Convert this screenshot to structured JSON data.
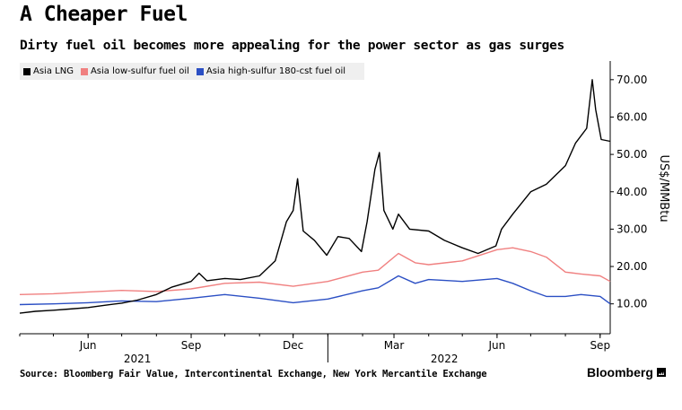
{
  "header": {
    "title": "A Cheaper Fuel",
    "subtitle": "Dirty fuel oil becomes more appealing for the power sector as gas surges"
  },
  "footer": {
    "source": "Source: Bloomberg Fair Value, Intercontinental Exchange, New York Mercantile Exchange",
    "brand": "Bloomberg"
  },
  "chart_data": {
    "type": "line",
    "title": "A Cheaper Fuel",
    "subtitle": "Dirty fuel oil becomes more appealing for the power sector as gas surges",
    "ylabel": "US$/MMBtu",
    "ylim": [
      2,
      75
    ],
    "y_ticks": [
      "10.00",
      "20.00",
      "30.00",
      "40.00",
      "50.00",
      "60.00",
      "70.00"
    ],
    "x_range": [
      "2021-04-01",
      "2022-09-10"
    ],
    "x_ticks": [
      {
        "label": "Jun",
        "date": "2021-06-01"
      },
      {
        "label": "Sep",
        "date": "2021-09-01"
      },
      {
        "label": "Dec",
        "date": "2021-12-01"
      },
      {
        "label": "Mar",
        "date": "2022-03-01"
      },
      {
        "label": "Jun",
        "date": "2022-06-01"
      },
      {
        "label": "Sep",
        "date": "2022-09-01"
      }
    ],
    "year_labels": [
      {
        "label": "2021",
        "date": "2021-07-15"
      },
      {
        "label": "2022",
        "date": "2022-04-15"
      }
    ],
    "year_dividers": [
      "2022-01-01"
    ],
    "legend_position": "top-left",
    "grid": false,
    "series": [
      {
        "name": "Asia LNG",
        "color": "#000000",
        "points": [
          [
            "2021-04-01",
            7.5
          ],
          [
            "2021-04-15",
            8.0
          ],
          [
            "2021-05-01",
            8.3
          ],
          [
            "2021-05-15",
            8.6
          ],
          [
            "2021-06-01",
            9.0
          ],
          [
            "2021-06-15",
            9.6
          ],
          [
            "2021-07-01",
            10.2
          ],
          [
            "2021-07-15",
            11.0
          ],
          [
            "2021-08-01",
            12.5
          ],
          [
            "2021-08-15",
            14.5
          ],
          [
            "2021-09-01",
            16.0
          ],
          [
            "2021-09-08",
            18.2
          ],
          [
            "2021-09-15",
            16.2
          ],
          [
            "2021-10-01",
            16.8
          ],
          [
            "2021-10-15",
            16.5
          ],
          [
            "2021-11-01",
            17.5
          ],
          [
            "2021-11-15",
            21.5
          ],
          [
            "2021-11-25",
            32.0
          ],
          [
            "2021-12-01",
            35.0
          ],
          [
            "2021-12-05",
            43.5
          ],
          [
            "2021-12-10",
            29.5
          ],
          [
            "2021-12-20",
            27.0
          ],
          [
            "2021-12-31",
            23.0
          ],
          [
            "2022-01-10",
            28.0
          ],
          [
            "2022-01-20",
            27.5
          ],
          [
            "2022-01-31",
            24.0
          ],
          [
            "2022-02-05",
            32.0
          ],
          [
            "2022-02-12",
            46.0
          ],
          [
            "2022-02-16",
            50.5
          ],
          [
            "2022-02-20",
            35.0
          ],
          [
            "2022-02-28",
            30.0
          ],
          [
            "2022-03-05",
            34.0
          ],
          [
            "2022-03-15",
            30.0
          ],
          [
            "2022-04-01",
            29.5
          ],
          [
            "2022-04-15",
            27.0
          ],
          [
            "2022-05-01",
            25.0
          ],
          [
            "2022-05-15",
            23.5
          ],
          [
            "2022-05-31",
            25.5
          ],
          [
            "2022-06-05",
            30.0
          ],
          [
            "2022-06-15",
            34.0
          ],
          [
            "2022-07-01",
            40.0
          ],
          [
            "2022-07-15",
            42.0
          ],
          [
            "2022-08-01",
            47.0
          ],
          [
            "2022-08-10",
            53.0
          ],
          [
            "2022-08-20",
            57.0
          ],
          [
            "2022-08-25",
            70.0
          ],
          [
            "2022-08-28",
            62.0
          ],
          [
            "2022-09-02",
            54.0
          ],
          [
            "2022-09-10",
            53.5
          ]
        ]
      },
      {
        "name": "Asia low-sulfur fuel oil",
        "color": "#f08080",
        "points": [
          [
            "2021-04-01",
            12.5
          ],
          [
            "2021-05-01",
            12.7
          ],
          [
            "2021-06-01",
            13.2
          ],
          [
            "2021-07-01",
            13.6
          ],
          [
            "2021-08-01",
            13.3
          ],
          [
            "2021-09-01",
            14.0
          ],
          [
            "2021-10-01",
            15.5
          ],
          [
            "2021-11-01",
            15.8
          ],
          [
            "2021-12-01",
            14.7
          ],
          [
            "2022-01-01",
            16.0
          ],
          [
            "2022-02-01",
            18.5
          ],
          [
            "2022-02-15",
            19.0
          ],
          [
            "2022-03-05",
            23.5
          ],
          [
            "2022-03-20",
            21.0
          ],
          [
            "2022-04-01",
            20.5
          ],
          [
            "2022-05-01",
            21.5
          ],
          [
            "2022-06-01",
            24.5
          ],
          [
            "2022-06-15",
            25.0
          ],
          [
            "2022-07-01",
            24.0
          ],
          [
            "2022-07-15",
            22.5
          ],
          [
            "2022-08-01",
            18.5
          ],
          [
            "2022-08-15",
            18.0
          ],
          [
            "2022-09-01",
            17.5
          ],
          [
            "2022-09-10",
            16.0
          ]
        ]
      },
      {
        "name": "Asia high-sulfur 180-cst fuel oil",
        "color": "#2b4fc4",
        "points": [
          [
            "2021-04-01",
            9.8
          ],
          [
            "2021-05-01",
            10.0
          ],
          [
            "2021-06-01",
            10.3
          ],
          [
            "2021-07-01",
            10.8
          ],
          [
            "2021-08-01",
            10.6
          ],
          [
            "2021-09-01",
            11.5
          ],
          [
            "2021-10-01",
            12.5
          ],
          [
            "2021-11-01",
            11.5
          ],
          [
            "2021-12-01",
            10.3
          ],
          [
            "2022-01-01",
            11.3
          ],
          [
            "2022-02-01",
            13.5
          ],
          [
            "2022-02-15",
            14.3
          ],
          [
            "2022-03-05",
            17.5
          ],
          [
            "2022-03-20",
            15.5
          ],
          [
            "2022-04-01",
            16.5
          ],
          [
            "2022-05-01",
            16.0
          ],
          [
            "2022-06-01",
            16.8
          ],
          [
            "2022-06-15",
            15.5
          ],
          [
            "2022-07-01",
            13.5
          ],
          [
            "2022-07-15",
            12.0
          ],
          [
            "2022-08-01",
            12.0
          ],
          [
            "2022-08-15",
            12.5
          ],
          [
            "2022-09-01",
            12.0
          ],
          [
            "2022-09-10",
            10.0
          ]
        ]
      }
    ]
  }
}
